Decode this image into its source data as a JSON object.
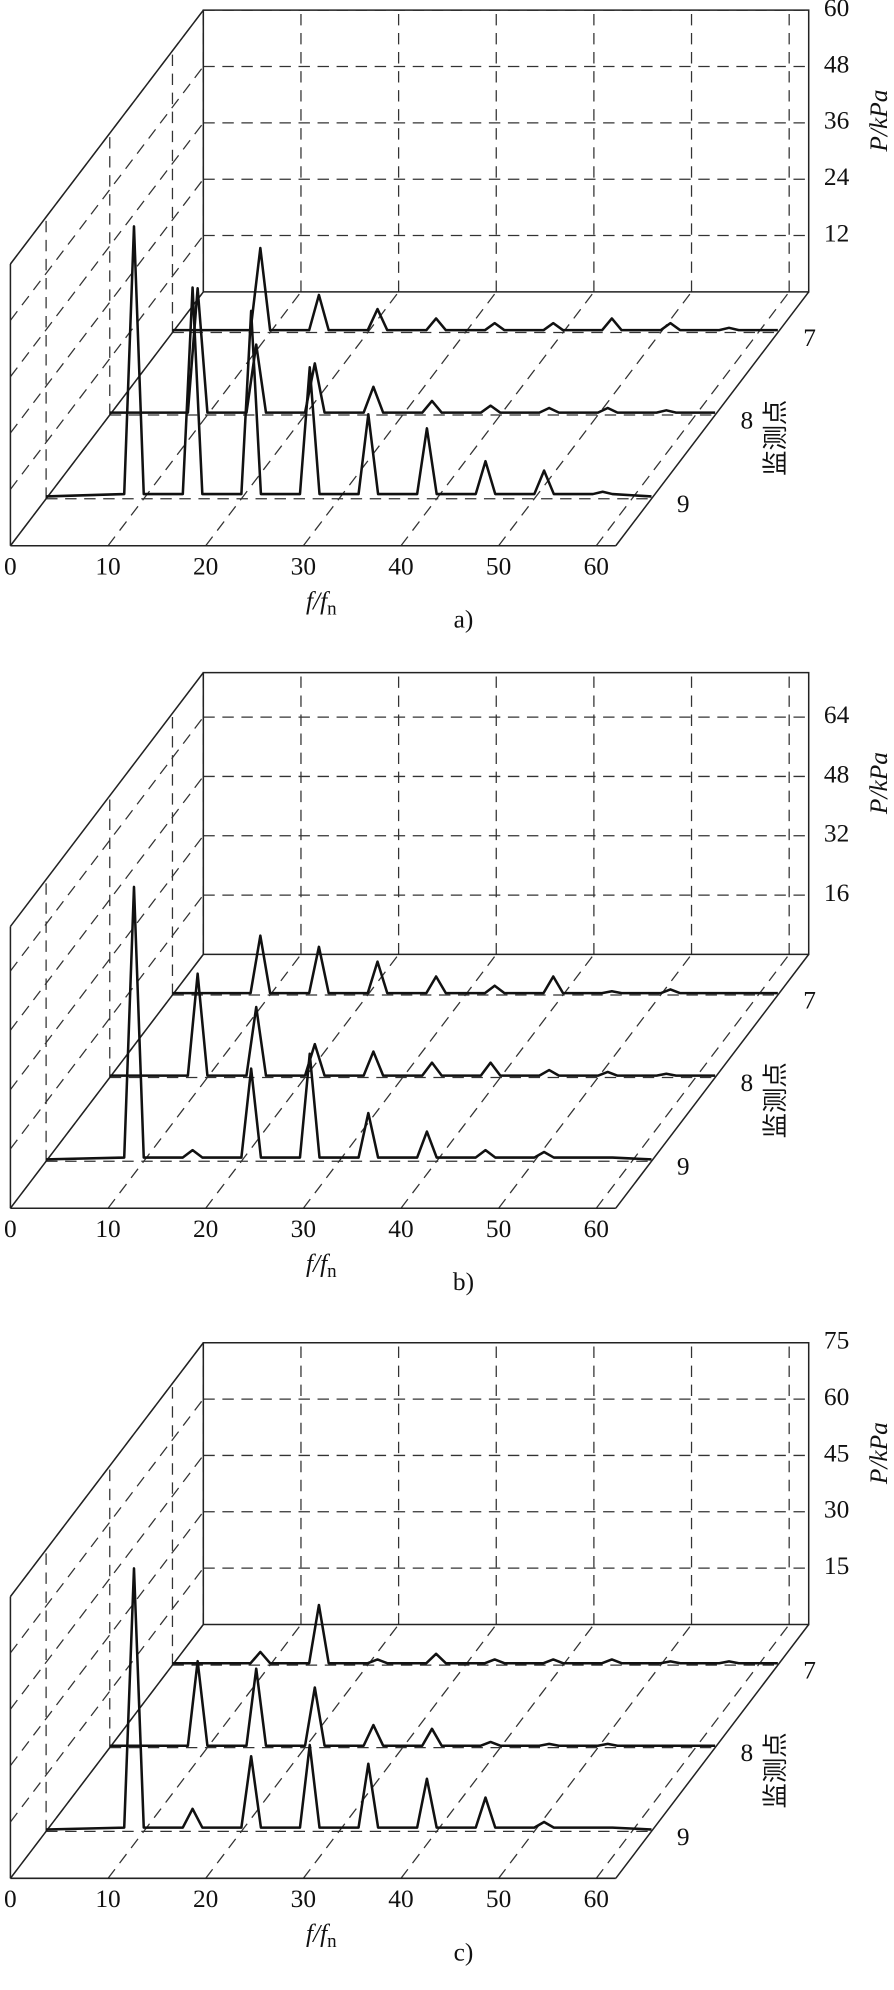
{
  "chart_data": [
    {
      "type": "waterfall",
      "panel_label": "a)",
      "x_label": "f/f",
      "x_label_sub": "n",
      "y_label": "P/kPa",
      "depth_label": "监测点",
      "x": [
        0,
        8,
        9,
        10,
        14,
        15,
        16,
        20,
        21,
        22,
        26,
        27,
        28,
        32,
        33,
        34,
        38,
        39,
        40,
        44,
        45,
        46,
        50,
        51,
        52,
        56,
        57,
        58,
        62
      ],
      "xlim": [
        0,
        62
      ],
      "xticks": [
        0,
        10,
        20,
        30,
        40,
        50,
        60
      ],
      "ylim": [
        0,
        60
      ],
      "yticks": [
        12,
        24,
        36,
        48,
        60
      ],
      "series": [
        {
          "name": "7",
          "color": "#111111",
          "values": [
            0.5,
            0.5,
            18,
            0.5,
            0.5,
            8,
            0.5,
            0.5,
            5,
            0.5,
            0.5,
            3,
            0.5,
            0.5,
            2,
            0.5,
            0.5,
            2,
            0.5,
            0.5,
            3,
            0.5,
            0.5,
            2,
            0.5,
            0.5,
            1,
            0.5,
            0.5
          ]
        },
        {
          "name": "8",
          "color": "#111111",
          "values": [
            0.5,
            0.5,
            27,
            0.5,
            0.5,
            15,
            0.5,
            0.5,
            11,
            0.5,
            0.5,
            6,
            0.5,
            0.5,
            3,
            0.5,
            0.5,
            2,
            0.5,
            0.5,
            1.5,
            0.5,
            0.5,
            1.5,
            0.5,
            0.5,
            1,
            0.5,
            0.5
          ]
        },
        {
          "name": "9",
          "color": "#111111",
          "values": [
            0.5,
            1,
            58,
            1,
            1,
            45,
            1,
            1,
            40,
            1,
            1,
            28,
            1,
            1,
            18,
            1,
            1,
            15,
            1,
            1,
            8,
            1,
            1,
            6,
            1,
            1,
            1.5,
            1,
            0.5
          ]
        }
      ]
    },
    {
      "type": "waterfall",
      "panel_label": "b)",
      "x_label": "f/f",
      "x_label_sub": "n",
      "y_label": "P/kPa",
      "depth_label": "监测点",
      "x": [
        0,
        8,
        9,
        10,
        14,
        15,
        16,
        20,
        21,
        22,
        26,
        27,
        28,
        32,
        33,
        34,
        38,
        39,
        40,
        44,
        45,
        46,
        50,
        51,
        52,
        56,
        57,
        58,
        62
      ],
      "xlim": [
        0,
        62
      ],
      "xticks": [
        0,
        10,
        20,
        30,
        40,
        50,
        60
      ],
      "ylim": [
        0,
        76
      ],
      "yticks": [
        16,
        32,
        48,
        64
      ],
      "series": [
        {
          "name": "7",
          "color": "#111111",
          "values": [
            0.5,
            0.5,
            16,
            0.5,
            0.5,
            13,
            0.5,
            0.5,
            9,
            0.5,
            0.5,
            5,
            0.5,
            0.5,
            2.5,
            0.5,
            0.5,
            5,
            0.5,
            0.5,
            1,
            0.5,
            0.5,
            1.5,
            0.5,
            0.5,
            0.5,
            0.5,
            0.5
          ]
        },
        {
          "name": "8",
          "color": "#111111",
          "values": [
            0.5,
            0.5,
            28,
            0.5,
            0.5,
            19,
            0.5,
            0.5,
            9,
            0.5,
            0.5,
            7,
            0.5,
            0.5,
            4,
            0.5,
            0.5,
            4,
            0.5,
            0.5,
            2,
            0.5,
            0.5,
            1.5,
            0.5,
            0.5,
            1,
            0.5,
            0.5
          ]
        },
        {
          "name": "9",
          "color": "#111111",
          "values": [
            0.5,
            1,
            74,
            1,
            1,
            3,
            1,
            1,
            25,
            1,
            1,
            29,
            1,
            1,
            13,
            1,
            1,
            8,
            1,
            1,
            3,
            1,
            1,
            2.5,
            1,
            1,
            1,
            1,
            0.5
          ]
        }
      ]
    },
    {
      "type": "waterfall",
      "panel_label": "c)",
      "x_label": "f/f",
      "x_label_sub": "n",
      "y_label": "P/kPa",
      "depth_label": "监测点",
      "x": [
        0,
        8,
        9,
        10,
        14,
        15,
        16,
        20,
        21,
        22,
        26,
        27,
        28,
        32,
        33,
        34,
        38,
        39,
        40,
        44,
        45,
        46,
        50,
        51,
        52,
        56,
        57,
        58,
        62
      ],
      "xlim": [
        0,
        62
      ],
      "xticks": [
        0,
        10,
        20,
        30,
        40,
        50,
        60
      ],
      "ylim": [
        0,
        75
      ],
      "yticks": [
        15,
        30,
        45,
        60,
        75
      ],
      "series": [
        {
          "name": "7",
          "color": "#111111",
          "values": [
            0.5,
            0.5,
            3.5,
            0.5,
            0.5,
            16,
            0.5,
            0.5,
            1.5,
            0.5,
            0.5,
            3,
            0.5,
            0.5,
            1.5,
            0.5,
            0.5,
            1.5,
            0.5,
            0.5,
            1.5,
            0.5,
            0.5,
            1,
            0.5,
            0.5,
            1,
            0.5,
            0.5
          ]
        },
        {
          "name": "8",
          "color": "#111111",
          "values": [
            0.5,
            0.5,
            23,
            0.5,
            0.5,
            21,
            0.5,
            0.5,
            16,
            0.5,
            0.5,
            6,
            0.5,
            0.5,
            5,
            0.5,
            0.5,
            1.5,
            0.5,
            0.5,
            1,
            0.5,
            0.5,
            1,
            0.5,
            0.5,
            0.5,
            0.5,
            0.5
          ]
        },
        {
          "name": "9",
          "color": "#111111",
          "values": [
            0.5,
            1,
            70,
            1,
            1,
            6,
            1,
            1,
            20,
            1,
            1,
            23,
            1,
            1,
            18,
            1,
            1,
            14,
            1,
            1,
            9,
            1,
            1,
            2.5,
            1,
            1,
            1,
            1,
            0.5
          ]
        }
      ]
    }
  ]
}
